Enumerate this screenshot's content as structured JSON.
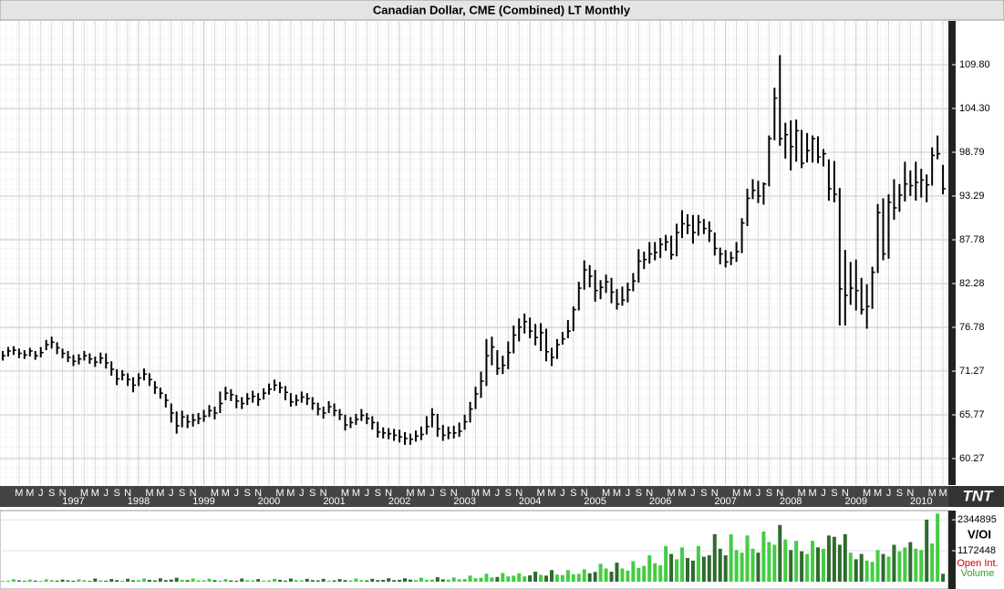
{
  "chart_data": {
    "type": "ohlc",
    "title": "Canadian Dollar, CME (Combined) LT Monthly",
    "logo": "TNT",
    "ylim": [
      56.94,
      115.3
    ],
    "yticks": [
      60.27,
      65.77,
      71.27,
      76.78,
      82.28,
      87.78,
      93.29,
      98.79,
      {
        "value": 104.3,
        "label": "104.30"
      },
      {
        "value": 109.8,
        "label": "109.80"
      }
    ],
    "grid": true,
    "month_labels": [
      "M",
      "M",
      "J",
      "S",
      "N"
    ],
    "years": [
      1997,
      1998,
      1999,
      2000,
      2001,
      2002,
      2003,
      2004,
      2005,
      2006,
      2007,
      2008,
      2009,
      2010
    ],
    "color": "#000000",
    "high": [
      73.8,
      74.3,
      74.4,
      74.1,
      73.9,
      74.2,
      73.8,
      74.3,
      75.2,
      75.6,
      74.9,
      74.1,
      73.8,
      73.3,
      73.4,
      73.8,
      73.5,
      73.1,
      73.6,
      73.5,
      72.5,
      71.5,
      71.4,
      71.0,
      70.5,
      71.0,
      71.6,
      71.0,
      70.0,
      69.2,
      68.4,
      67.2,
      66.2,
      66.3,
      65.8,
      65.9,
      66.0,
      66.4,
      67.0,
      66.8,
      68.7,
      69.3,
      69.0,
      68.3,
      68.0,
      68.5,
      68.8,
      68.5,
      69.1,
      69.7,
      70.2,
      69.9,
      69.4,
      68.5,
      68.3,
      68.7,
      68.5,
      68.0,
      67.3,
      66.8,
      67.5,
      67.2,
      66.5,
      65.8,
      65.5,
      65.9,
      66.5,
      66.0,
      65.6,
      64.9,
      64.2,
      64.1,
      64.0,
      63.9,
      63.6,
      63.4,
      63.8,
      64.3,
      65.6,
      66.6,
      65.9,
      64.5,
      64.3,
      64.4,
      64.8,
      65.8,
      67.4,
      69.3,
      71.2,
      75.3,
      75.6,
      73.9,
      73.2,
      75.0,
      77.0,
      77.9,
      78.5,
      78.0,
      77.2,
      77.3,
      76.6,
      74.2,
      75.3,
      76.2,
      77.7,
      79.4,
      82.5,
      85.2,
      84.6,
      84.0,
      82.7,
      83.4,
      83.0,
      81.6,
      81.9,
      82.4,
      83.6,
      86.6,
      86.3,
      87.5,
      87.5,
      88.0,
      88.4,
      88.3,
      89.8,
      91.5,
      91.0,
      90.9,
      90.9,
      90.4,
      90.1,
      88.7,
      86.8,
      86.5,
      86.3,
      87.5,
      90.5,
      94.2,
      95.4,
      95.2,
      95.0,
      100.9,
      106.9,
      111.0,
      102.5,
      102.8,
      102.9,
      101.6,
      101.2,
      100.9,
      100.8,
      99.2,
      97.9,
      97.7,
      94.3,
      86.5,
      85.0,
      85.3,
      83.0,
      82.2,
      84.4,
      92.3,
      93.0,
      93.5,
      95.4,
      94.8,
      97.6,
      96.5,
      97.6,
      96.7,
      96.0,
      99.4,
      100.9,
      97.2
    ],
    "low": [
      72.6,
      73.1,
      73.3,
      72.9,
      72.8,
      73.1,
      72.7,
      73.0,
      73.9,
      74.1,
      73.4,
      72.9,
      72.4,
      71.9,
      72.1,
      72.6,
      72.2,
      71.8,
      72.2,
      71.6,
      70.7,
      69.5,
      70.1,
      69.4,
      68.6,
      69.4,
      70.1,
      69.4,
      68.4,
      67.8,
      66.7,
      64.8,
      63.4,
      64.2,
      64.1,
      64.3,
      64.6,
      64.9,
      65.5,
      65.2,
      66.0,
      67.6,
      67.5,
      66.6,
      66.5,
      67.0,
      67.3,
      66.9,
      67.7,
      68.3,
      68.8,
      68.5,
      67.6,
      66.8,
      66.9,
      67.3,
      67.0,
      66.4,
      65.7,
      65.3,
      66.0,
      65.6,
      65.1,
      63.8,
      64.1,
      64.5,
      65.0,
      64.6,
      63.9,
      62.9,
      62.8,
      62.7,
      62.5,
      62.3,
      62.0,
      62.0,
      62.4,
      62.6,
      63.3,
      64.2,
      63.0,
      62.5,
      62.7,
      62.8,
      63.0,
      63.9,
      64.8,
      66.5,
      67.9,
      69.4,
      72.0,
      70.8,
      70.9,
      71.5,
      73.5,
      75.0,
      76.0,
      75.4,
      74.5,
      73.8,
      72.5,
      71.9,
      72.8,
      74.6,
      75.4,
      76.3,
      78.9,
      81.5,
      81.8,
      80.0,
      80.3,
      81.1,
      79.8,
      79.0,
      79.5,
      79.9,
      81.3,
      82.4,
      84.1,
      84.8,
      85.2,
      85.5,
      86.4,
      85.3,
      85.7,
      88.0,
      88.5,
      87.3,
      88.3,
      88.5,
      87.5,
      85.8,
      84.7,
      84.3,
      84.6,
      85.0,
      86.1,
      89.5,
      92.9,
      92.4,
      92.2,
      94.5,
      100.3,
      99.6,
      98.0,
      96.5,
      97.6,
      96.8,
      97.5,
      97.5,
      97.4,
      97.0,
      92.7,
      92.5,
      77.0,
      77.0,
      79.6,
      78.9,
      78.4,
      76.6,
      79.1,
      83.6,
      85.2,
      85.4,
      90.3,
      91.3,
      92.6,
      93.3,
      92.7,
      93.1,
      92.5,
      94.6,
      97.9,
      93.5
    ],
    "close": [
      73.2,
      73.8,
      73.9,
      73.5,
      73.3,
      73.8,
      73.2,
      73.6,
      74.6,
      74.9,
      74.2,
      73.5,
      73.0,
      72.5,
      72.8,
      73.2,
      72.8,
      72.4,
      72.9,
      72.3,
      71.5,
      70.3,
      70.8,
      70.2,
      69.5,
      70.4,
      70.9,
      70.2,
      69.2,
      68.5,
      67.6,
      66.0,
      64.4,
      65.5,
      64.9,
      65.1,
      65.3,
      65.6,
      66.3,
      66.0,
      67.2,
      68.5,
      68.3,
      67.5,
      67.2,
      67.8,
      68.1,
      67.7,
      68.5,
      69.0,
      69.5,
      69.2,
      68.6,
      67.4,
      67.6,
      68.0,
      67.8,
      67.2,
      66.5,
      66.0,
      66.8,
      66.3,
      65.8,
      64.5,
      64.8,
      65.2,
      65.7,
      65.3,
      64.8,
      63.6,
      63.5,
      63.4,
      63.2,
      63.0,
      62.8,
      62.7,
      63.1,
      63.3,
      64.3,
      65.8,
      64.0,
      63.2,
      63.5,
      63.5,
      63.7,
      64.9,
      66.5,
      68.4,
      70.0,
      73.2,
      74.3,
      71.6,
      72.0,
      73.6,
      75.8,
      76.8,
      77.5,
      76.3,
      75.5,
      76.1,
      73.7,
      73.0,
      74.6,
      75.3,
      76.3,
      79.0,
      81.7,
      84.0,
      83.2,
      81.4,
      81.8,
      82.5,
      81.2,
      79.7,
      80.2,
      81.5,
      82.6,
      85.1,
      85.3,
      86.0,
      86.2,
      87.2,
      87.5,
      85.9,
      88.7,
      89.8,
      89.6,
      88.7,
      90.0,
      89.2,
      88.9,
      86.7,
      86.0,
      85.0,
      85.5,
      86.3,
      89.9,
      93.0,
      94.0,
      93.3,
      94.8,
      100.5,
      105.6,
      100.5,
      101.0,
      99.5,
      101.5,
      97.4,
      99.0,
      100.5,
      98.2,
      98.6,
      94.2,
      93.5,
      81.6,
      80.8,
      81.7,
      81.4,
      79.0,
      79.4,
      83.7,
      91.2,
      86.0,
      92.5,
      91.8,
      93.4,
      94.8,
      94.6,
      95.0,
      95.3,
      94.7,
      98.4,
      98.6,
      94.2
    ],
    "volume": {
      "label": "V/OI",
      "legend": [
        "Open Int.",
        "Volume"
      ],
      "legend_colors": [
        "#cc0000",
        "#2e9e2e"
      ],
      "up_color": "#44cc44",
      "down_color": "#2e6b2e",
      "ylim": [
        0,
        2590000
      ],
      "yticks": [
        1172448,
        2344895
      ],
      "values": [
        30000,
        40000,
        90000,
        50000,
        30000,
        80000,
        40000,
        30000,
        90000,
        60000,
        40000,
        80000,
        50000,
        40000,
        90000,
        60000,
        30000,
        120000,
        50000,
        40000,
        100000,
        60000,
        40000,
        110000,
        50000,
        60000,
        120000,
        70000,
        50000,
        130000,
        60000,
        80000,
        150000,
        70000,
        60000,
        120000,
        50000,
        50000,
        110000,
        60000,
        40000,
        100000,
        50000,
        40000,
        120000,
        60000,
        50000,
        100000,
        40000,
        50000,
        110000,
        70000,
        40000,
        120000,
        60000,
        50000,
        110000,
        60000,
        50000,
        110000,
        40000,
        50000,
        100000,
        60000,
        50000,
        120000,
        60000,
        50000,
        110000,
        60000,
        70000,
        130000,
        60000,
        70000,
        130000,
        80000,
        60000,
        150000,
        70000,
        80000,
        170000,
        90000,
        80000,
        160000,
        90000,
        100000,
        230000,
        130000,
        150000,
        300000,
        160000,
        180000,
        330000,
        200000,
        230000,
        320000,
        200000,
        240000,
        380000,
        260000,
        230000,
        440000,
        270000,
        250000,
        440000,
        280000,
        300000,
        470000,
        320000,
        370000,
        680000,
        500000,
        380000,
        720000,
        500000,
        420000,
        780000,
        520000,
        600000,
        1000000,
        700000,
        620000,
        1350000,
        1050000,
        850000,
        1300000,
        900000,
        800000,
        1350000,
        950000,
        1000000,
        1800000,
        1250000,
        1000000,
        1800000,
        1200000,
        1100000,
        1750000,
        1250000,
        1100000,
        1900000,
        1500000,
        1400000,
        2150000,
        1600000,
        1200000,
        1550000,
        1150000,
        1050000,
        1550000,
        1300000,
        1250000,
        1750000,
        1700000,
        1400000,
        1800000,
        1100000,
        850000,
        1050000,
        800000,
        750000,
        1200000,
        1050000,
        950000,
        1400000,
        1150000,
        1300000,
        1500000,
        1250000,
        1200000,
        2350000,
        1450000,
        2580000,
        300000
      ]
    }
  }
}
